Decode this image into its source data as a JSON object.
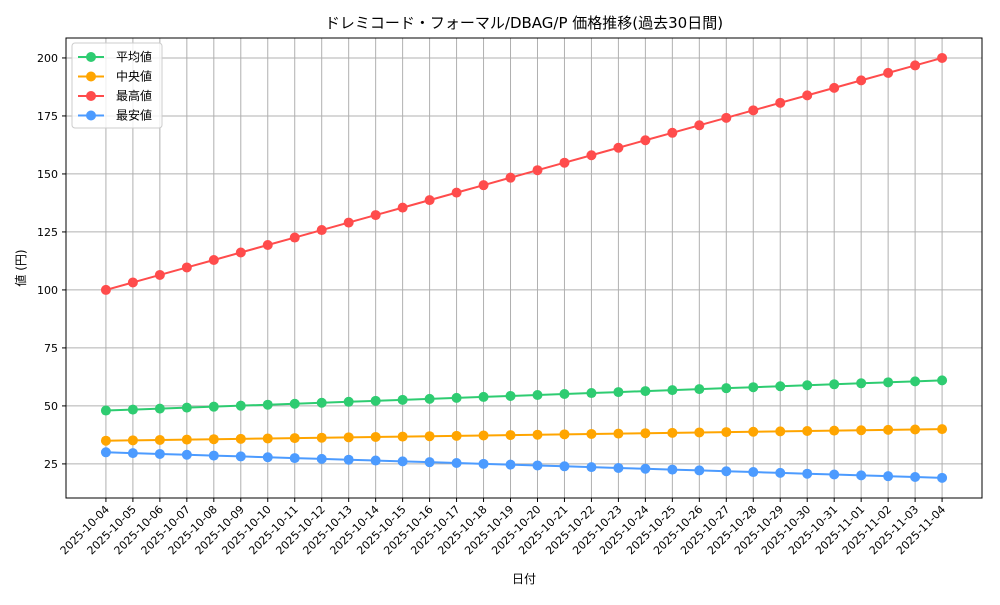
{
  "chart_data": {
    "type": "line",
    "title": "ドレミコード・フォーマル/DBAG/P 価格推移(過去30日間)",
    "xlabel": "日付",
    "ylabel": "値 (円)",
    "ylim": [
      10.3,
      208.6
    ],
    "yticks": [
      25,
      50,
      75,
      100,
      125,
      150,
      175,
      200
    ],
    "grid": true,
    "legend_position": "top-left",
    "x": [
      "2025-10-04",
      "2025-10-05",
      "2025-10-06",
      "2025-10-07",
      "2025-10-08",
      "2025-10-09",
      "2025-10-10",
      "2025-10-11",
      "2025-10-12",
      "2025-10-13",
      "2025-10-14",
      "2025-10-15",
      "2025-10-16",
      "2025-10-17",
      "2025-10-18",
      "2025-10-19",
      "2025-10-20",
      "2025-10-21",
      "2025-10-22",
      "2025-10-23",
      "2025-10-24",
      "2025-10-25",
      "2025-10-26",
      "2025-10-27",
      "2025-10-28",
      "2025-10-29",
      "2025-10-30",
      "2025-10-31",
      "2025-11-01",
      "2025-11-02",
      "2025-11-03",
      "2025-11-04"
    ],
    "series": [
      {
        "name": "平均値",
        "color": "#2ecc71",
        "start": 48,
        "end": 61
      },
      {
        "name": "中央値",
        "color": "#ffa500",
        "start": 35,
        "end": 40
      },
      {
        "name": "最高値",
        "color": "#ff4c4c",
        "start": 100,
        "end": 200
      },
      {
        "name": "最安値",
        "color": "#4c9bff",
        "start": 30,
        "end": 19
      }
    ]
  }
}
